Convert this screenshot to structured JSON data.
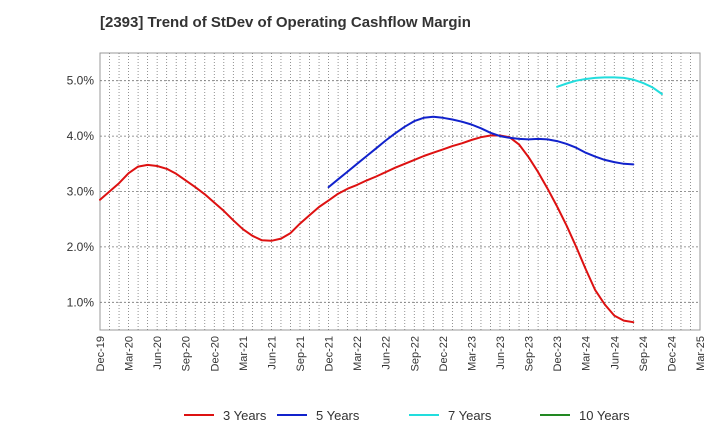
{
  "chart_data": {
    "type": "line",
    "title": "[2393]  Trend of StDev of Operating Cashflow Margin",
    "xlabel": "",
    "ylabel": "",
    "ylim": [
      0.5,
      5.5
    ],
    "y_ticks": [
      "1.0%",
      "2.0%",
      "3.0%",
      "4.0%",
      "5.0%"
    ],
    "y_tick_values": [
      1.0,
      2.0,
      3.0,
      4.0,
      5.0
    ],
    "x_ticks": [
      "Dec-19",
      "Mar-20",
      "Jun-20",
      "Sep-20",
      "Dec-20",
      "Mar-21",
      "Jun-21",
      "Sep-21",
      "Dec-21",
      "Mar-22",
      "Jun-22",
      "Sep-22",
      "Dec-22",
      "Mar-23",
      "Jun-23",
      "Sep-23",
      "Dec-23",
      "Mar-24",
      "Jun-24",
      "Sep-24",
      "Dec-24",
      "Mar-25"
    ],
    "grid": true,
    "legend_position": "bottom",
    "series": [
      {
        "name": "3 Years",
        "color": "#dd1111",
        "points": [
          [
            "Dec-19",
            2.85
          ],
          [
            "Jan-20",
            3.0
          ],
          [
            "Feb-20",
            3.15
          ],
          [
            "Mar-20",
            3.33
          ],
          [
            "Apr-20",
            3.45
          ],
          [
            "May-20",
            3.48
          ],
          [
            "Jun-20",
            3.46
          ],
          [
            "Jul-20",
            3.41
          ],
          [
            "Aug-20",
            3.32
          ],
          [
            "Sep-20",
            3.2
          ],
          [
            "Oct-20",
            3.08
          ],
          [
            "Nov-20",
            2.95
          ],
          [
            "Dec-20",
            2.8
          ],
          [
            "Jan-21",
            2.65
          ],
          [
            "Feb-21",
            2.48
          ],
          [
            "Mar-21",
            2.32
          ],
          [
            "Apr-21",
            2.2
          ],
          [
            "May-21",
            2.12
          ],
          [
            "Jun-21",
            2.11
          ],
          [
            "Jul-21",
            2.15
          ],
          [
            "Aug-21",
            2.25
          ],
          [
            "Sep-21",
            2.42
          ],
          [
            "Oct-21",
            2.57
          ],
          [
            "Nov-21",
            2.72
          ],
          [
            "Dec-21",
            2.84
          ],
          [
            "Jan-22",
            2.96
          ],
          [
            "Feb-22",
            3.05
          ],
          [
            "Mar-22",
            3.12
          ],
          [
            "Apr-22",
            3.2
          ],
          [
            "May-22",
            3.27
          ],
          [
            "Jun-22",
            3.35
          ],
          [
            "Jul-22",
            3.43
          ],
          [
            "Aug-22",
            3.5
          ],
          [
            "Sep-22",
            3.57
          ],
          [
            "Oct-22",
            3.64
          ],
          [
            "Nov-22",
            3.7
          ],
          [
            "Dec-22",
            3.76
          ],
          [
            "Jan-23",
            3.82
          ],
          [
            "Feb-23",
            3.87
          ],
          [
            "Mar-23",
            3.93
          ],
          [
            "Apr-23",
            3.98
          ],
          [
            "May-23",
            4.01
          ],
          [
            "Jun-23",
            4.01
          ],
          [
            "Jul-23",
            3.98
          ],
          [
            "Aug-23",
            3.85
          ],
          [
            "Sep-23",
            3.62
          ],
          [
            "Oct-23",
            3.35
          ],
          [
            "Nov-23",
            3.05
          ],
          [
            "Dec-23",
            2.73
          ],
          [
            "Jan-24",
            2.38
          ],
          [
            "Feb-24",
            2.0
          ],
          [
            "Mar-24",
            1.6
          ],
          [
            "Apr-24",
            1.22
          ],
          [
            "May-24",
            0.96
          ],
          [
            "Jun-24",
            0.76
          ],
          [
            "Jul-24",
            0.67
          ],
          [
            "Aug-24",
            0.64
          ]
        ]
      },
      {
        "name": "5 Years",
        "color": "#1122cc",
        "points": [
          [
            "Dec-21",
            3.08
          ],
          [
            "Jan-22",
            3.22
          ],
          [
            "Feb-22",
            3.36
          ],
          [
            "Mar-22",
            3.5
          ],
          [
            "Apr-22",
            3.64
          ],
          [
            "May-22",
            3.78
          ],
          [
            "Jun-22",
            3.92
          ],
          [
            "Jul-22",
            4.05
          ],
          [
            "Aug-22",
            4.17
          ],
          [
            "Sep-22",
            4.27
          ],
          [
            "Oct-22",
            4.33
          ],
          [
            "Nov-22",
            4.35
          ],
          [
            "Dec-22",
            4.33
          ],
          [
            "Jan-23",
            4.3
          ],
          [
            "Feb-23",
            4.26
          ],
          [
            "Mar-23",
            4.21
          ],
          [
            "Apr-23",
            4.14
          ],
          [
            "May-23",
            4.06
          ],
          [
            "Jun-23",
            4.0
          ],
          [
            "Jul-23",
            3.97
          ],
          [
            "Aug-23",
            3.95
          ],
          [
            "Sep-23",
            3.94
          ],
          [
            "Oct-23",
            3.95
          ],
          [
            "Nov-23",
            3.94
          ],
          [
            "Dec-23",
            3.91
          ],
          [
            "Jan-24",
            3.86
          ],
          [
            "Feb-24",
            3.79
          ],
          [
            "Mar-24",
            3.7
          ],
          [
            "Apr-24",
            3.63
          ],
          [
            "May-24",
            3.57
          ],
          [
            "Jun-24",
            3.53
          ],
          [
            "Jul-24",
            3.5
          ],
          [
            "Aug-24",
            3.49
          ]
        ]
      },
      {
        "name": "7 Years",
        "color": "#22dddd",
        "points": [
          [
            "Dec-23",
            4.89
          ],
          [
            "Jan-24",
            4.95
          ],
          [
            "Feb-24",
            5.0
          ],
          [
            "Mar-24",
            5.03
          ],
          [
            "Apr-24",
            5.05
          ],
          [
            "May-24",
            5.06
          ],
          [
            "Jun-24",
            5.06
          ],
          [
            "Jul-24",
            5.05
          ],
          [
            "Aug-24",
            5.02
          ],
          [
            "Sep-24",
            4.96
          ],
          [
            "Oct-24",
            4.88
          ],
          [
            "Nov-24",
            4.76
          ]
        ]
      },
      {
        "name": "10 Years",
        "color": "#228822",
        "points": []
      }
    ]
  }
}
